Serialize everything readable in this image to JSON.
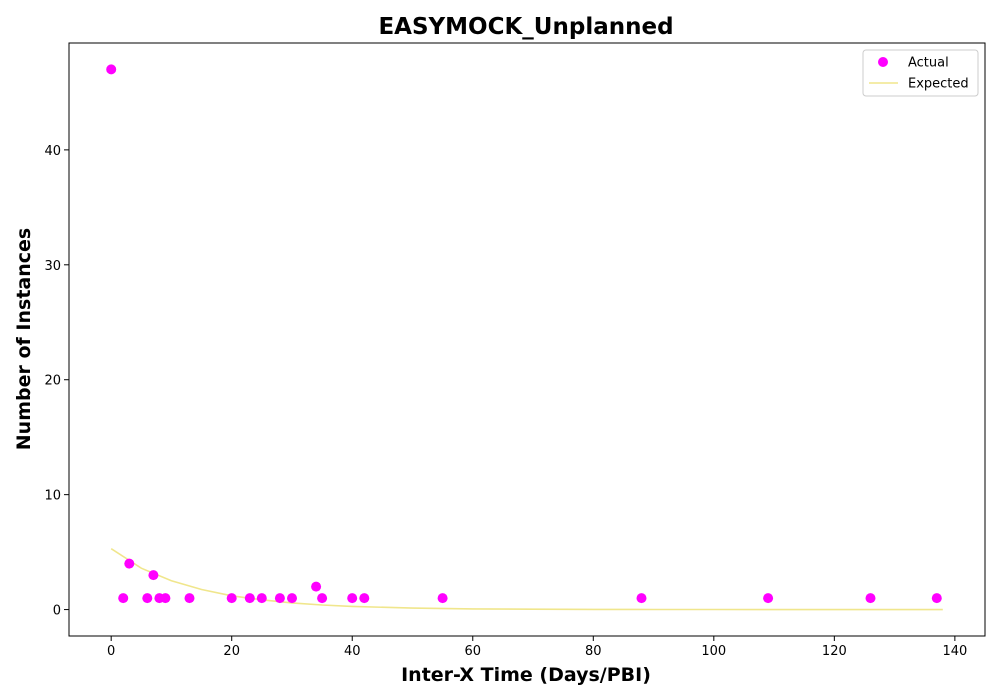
{
  "chart_data": {
    "type": "scatter",
    "title": "EASYMOCK_Unplanned",
    "xlabel": "Inter-X Time (Days/PBI)",
    "ylabel": "Number of Instances",
    "xlim": [
      -7,
      145
    ],
    "ylim": [
      -2.3,
      49.3
    ],
    "xticks": [
      0,
      20,
      40,
      60,
      80,
      100,
      120,
      140
    ],
    "yticks": [
      0,
      10,
      20,
      30,
      40
    ],
    "grid": false,
    "legend_position": "top-right",
    "series": [
      {
        "name": "Actual",
        "kind": "scatter",
        "color": "#ff00ff",
        "x": [
          0,
          2,
          3,
          6,
          7,
          8,
          9,
          13,
          20,
          23,
          25,
          28,
          30,
          34,
          35,
          40,
          42,
          55,
          88,
          109,
          126,
          137
        ],
        "y": [
          47,
          1,
          4,
          1,
          3,
          1,
          1,
          1,
          1,
          1,
          1,
          1,
          1,
          2,
          1,
          1,
          1,
          1,
          1,
          1,
          1,
          1
        ]
      },
      {
        "name": "Expected",
        "kind": "line",
        "color": "#f0e68c",
        "x": [
          0,
          5,
          10,
          15,
          20,
          25,
          30,
          35,
          40,
          50,
          60,
          70,
          80,
          90,
          100,
          110,
          120,
          130,
          138
        ],
        "y": [
          5.3,
          3.6,
          2.5,
          1.75,
          1.2,
          0.85,
          0.58,
          0.4,
          0.28,
          0.13,
          0.06,
          0.03,
          0.015,
          0.007,
          0.003,
          0.0015,
          0.0007,
          0.0003,
          0.0002
        ]
      }
    ]
  }
}
